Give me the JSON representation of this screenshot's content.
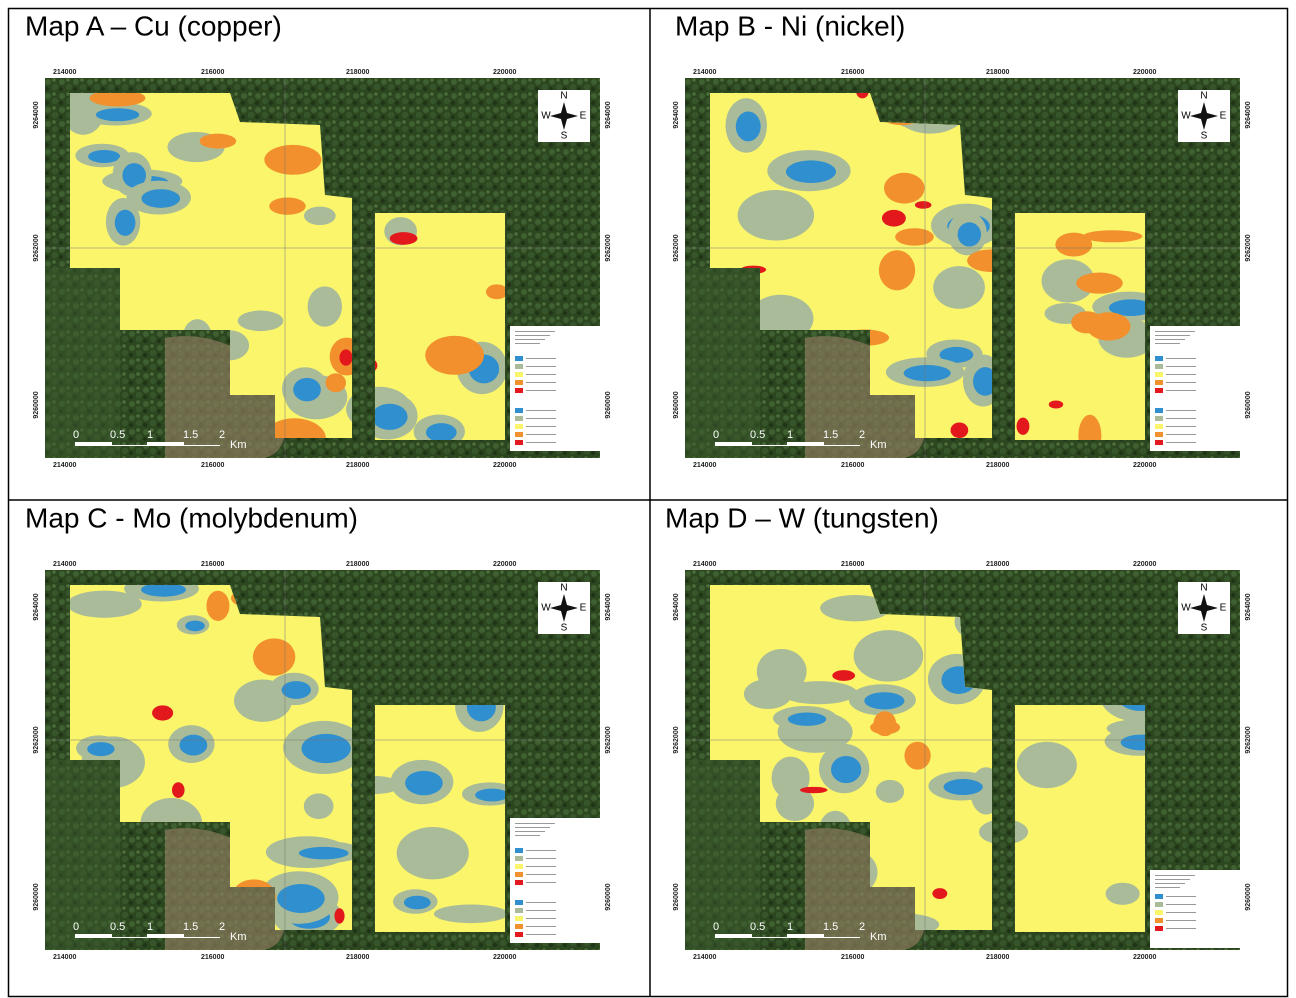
{
  "panels": [
    {
      "title": "Map A – Cu (copper)",
      "x_labels": [
        "214000",
        "216000",
        "218000",
        "220000"
      ],
      "y_labels": [
        "9264000",
        "9262000",
        "9260000"
      ],
      "scale_labels": [
        "0",
        "0.5",
        "1",
        "1.5",
        "2",
        "Km"
      ],
      "compass": [
        "N",
        "W",
        "E",
        "S"
      ]
    },
    {
      "title": "Map B - Ni (nickel)",
      "x_labels": [
        "214000",
        "216000",
        "218000",
        "220000"
      ],
      "y_labels": [
        "9264000",
        "9262000",
        "9260000"
      ],
      "scale_labels": [
        "0",
        "0.5",
        "1",
        "1.5",
        "2",
        "Km"
      ],
      "compass": [
        "N",
        "W",
        "E",
        "S"
      ]
    },
    {
      "title": "Map C - Mo (molybdenum)",
      "x_labels": [
        "214000",
        "216000",
        "218000",
        "220000"
      ],
      "y_labels": [
        "9264000",
        "9262000",
        "9260000"
      ],
      "scale_labels": [
        "0",
        "0.5",
        "1",
        "1.5",
        "2",
        "Km"
      ],
      "compass": [
        "N",
        "W",
        "E",
        "S"
      ]
    },
    {
      "title": "Map D – W (tungsten)",
      "x_labels": [
        "214000",
        "216000",
        "218000",
        "220000"
      ],
      "y_labels": [
        "9264000",
        "9262000",
        "9260000"
      ],
      "scale_labels": [
        "0",
        "0.5",
        "1",
        "1.5",
        "2",
        "Km"
      ],
      "compass": [
        "N",
        "W",
        "E",
        "S"
      ]
    }
  ]
}
